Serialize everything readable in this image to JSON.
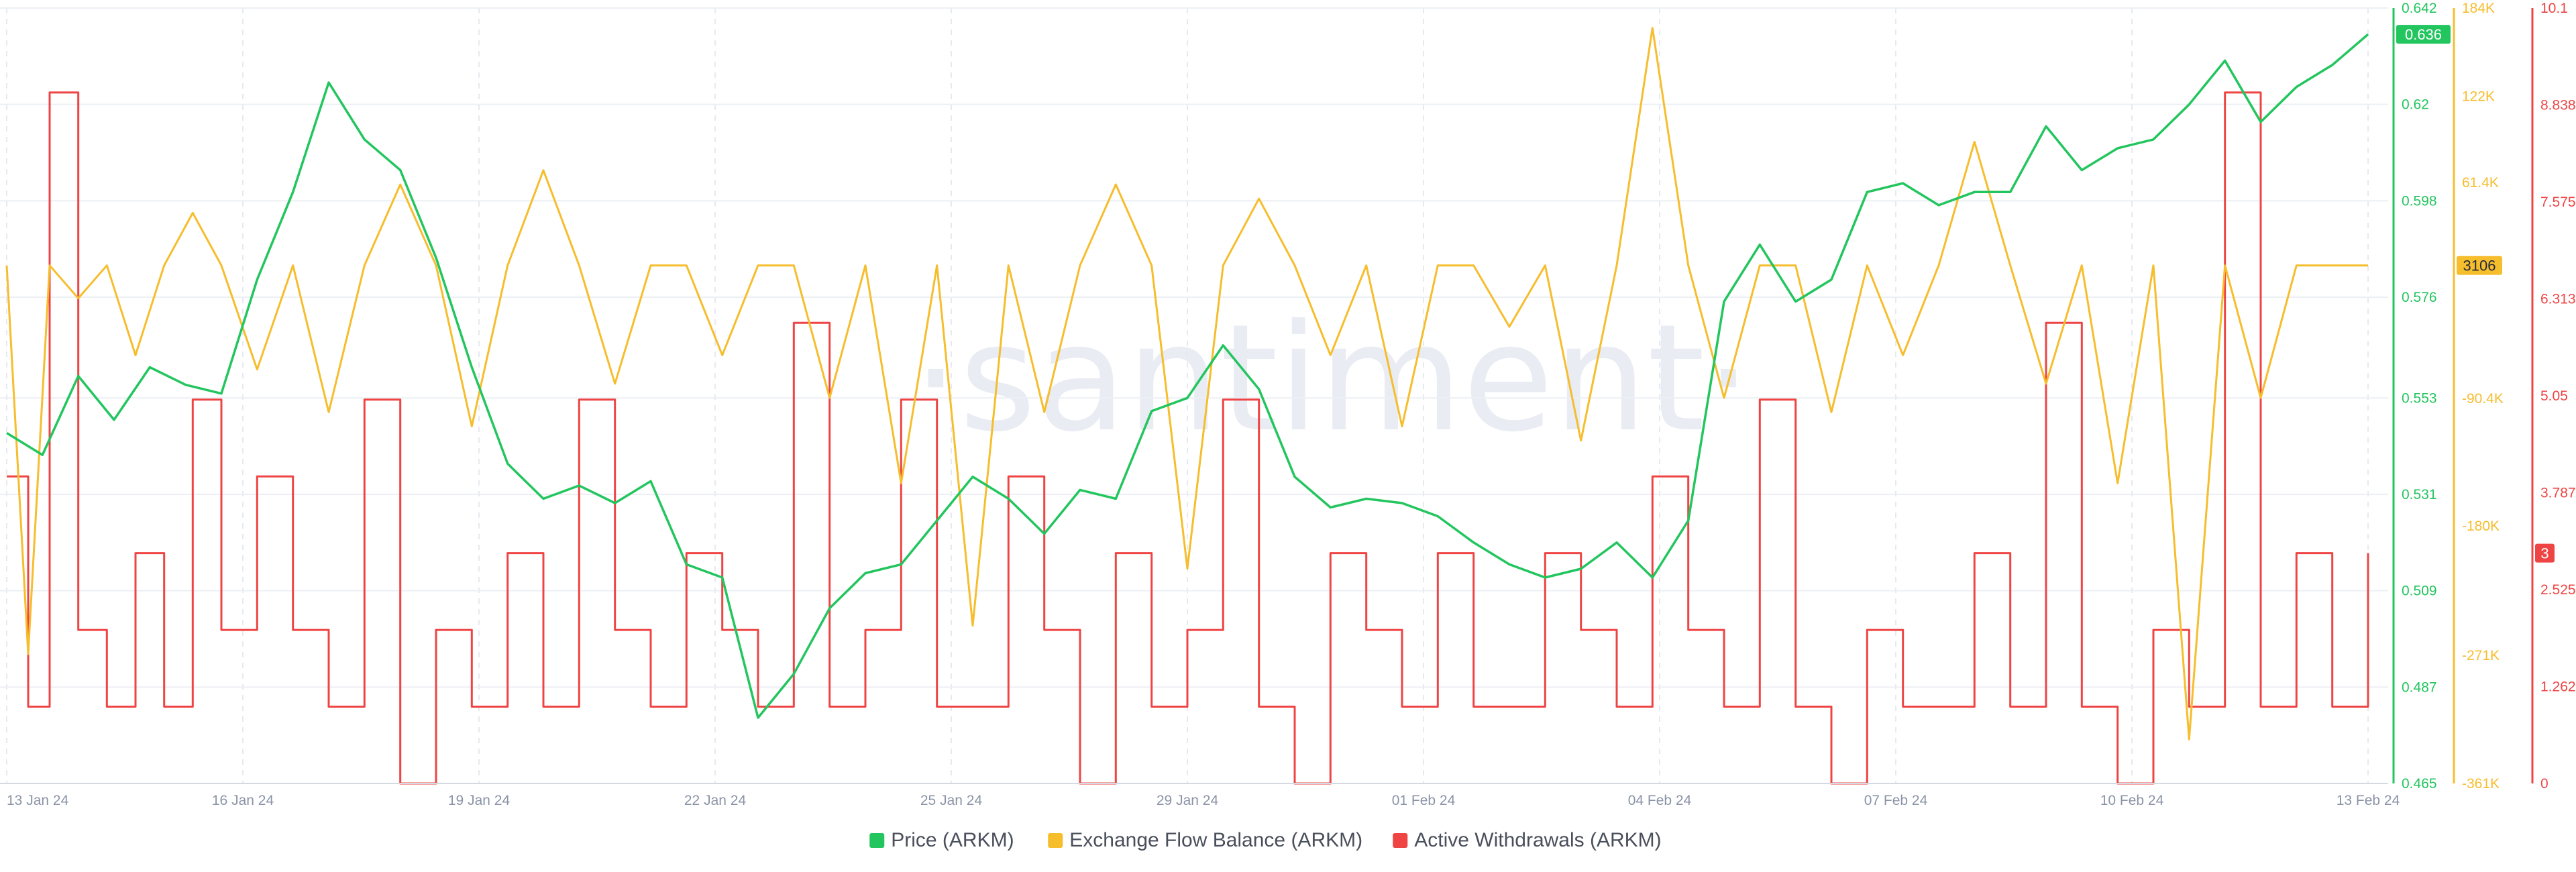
{
  "watermark": "·santiment·",
  "chart_data": {
    "type": "line",
    "grid": true,
    "legend_placement": "bottom-center",
    "x_ticks": [
      "13 Jan 24",
      "16 Jan 24",
      "19 Jan 24",
      "22 Jan 24",
      "25 Jan 24",
      "29 Jan 24",
      "01 Feb 24",
      "04 Feb 24",
      "07 Feb 24",
      "10 Feb 24",
      "13 Feb 24"
    ],
    "y_axes": [
      {
        "id": "price",
        "color": "#22c55e",
        "range": [
          0.465,
          0.642
        ],
        "ticks": [
          "0.642",
          "0.62",
          "0.598",
          "0.576",
          "0.553",
          "0.531",
          "0.509",
          "0.487",
          "0.465"
        ],
        "current_label": "0.636"
      },
      {
        "id": "flow",
        "color": "#f6bd2d",
        "range": [
          -361000,
          184000
        ],
        "ticks": [
          "184K",
          "122K",
          "61.4K",
          "3106",
          "-90.4K",
          "-180K",
          "-271K",
          "-361K"
        ],
        "current_label": "3106"
      },
      {
        "id": "withdrawals",
        "color": "#ef4444",
        "range": [
          0,
          10.1
        ],
        "ticks": [
          "10.1",
          "8.838",
          "7.575",
          "6.313",
          "5.05",
          "3.787",
          "2.525",
          "1.262",
          "0"
        ],
        "current_label": "3"
      }
    ],
    "series": [
      {
        "name": "Price (ARKM)",
        "axis": "price",
        "color": "#22c55e",
        "x": [
          0,
          0.5,
          1,
          1.5,
          2,
          2.5,
          3,
          3.5,
          4,
          4.5,
          5,
          5.5,
          6,
          6.5,
          7,
          7.5,
          8,
          8.5,
          9,
          9.5,
          10,
          10.5,
          11,
          11.5,
          12,
          12.5,
          13,
          13.5,
          14,
          14.5,
          15,
          15.5,
          16,
          16.5,
          17,
          17.5,
          18,
          18.5,
          19,
          19.5,
          20,
          20.5,
          21,
          21.5,
          22,
          22.5,
          23,
          23.5,
          24,
          24.5,
          25,
          25.5,
          26,
          26.5,
          27,
          27.5,
          28,
          28.5,
          29,
          29.5,
          30,
          30.5,
          31,
          31.5,
          32,
          32.5,
          33
        ],
        "values": [
          0.545,
          0.54,
          0.558,
          0.548,
          0.56,
          0.556,
          0.554,
          0.58,
          0.6,
          0.625,
          0.612,
          0.605,
          0.585,
          0.56,
          0.538,
          0.53,
          0.533,
          0.529,
          0.534,
          0.515,
          0.512,
          0.48,
          0.49,
          0.505,
          0.513,
          0.515,
          0.525,
          0.535,
          0.53,
          0.522,
          0.532,
          0.53,
          0.55,
          0.553,
          0.565,
          0.555,
          0.535,
          0.528,
          0.53,
          0.529,
          0.526,
          0.52,
          0.515,
          0.512,
          0.514,
          0.52,
          0.512,
          0.525,
          0.575,
          0.588,
          0.575,
          0.58,
          0.6,
          0.602,
          0.597,
          0.6,
          0.6,
          0.615,
          0.605,
          0.61,
          0.612,
          0.62,
          0.63,
          0.616,
          0.624,
          0.629,
          0.636
        ]
      },
      {
        "name": "Exchange Flow Balance (ARKM)",
        "axis": "flow",
        "color": "#f6bd2d",
        "x": [
          0,
          0.3,
          0.6,
          1,
          1.4,
          1.8,
          2.2,
          2.6,
          3,
          3.5,
          4,
          4.5,
          5,
          5.5,
          6,
          6.5,
          7,
          7.5,
          8,
          8.5,
          9,
          9.5,
          10,
          10.5,
          11,
          11.5,
          12,
          12.5,
          13,
          13.5,
          14,
          14.5,
          15,
          15.5,
          16,
          16.5,
          17,
          17.5,
          18,
          18.5,
          19,
          19.5,
          20,
          20.5,
          21,
          21.5,
          22,
          22.5,
          23,
          23.5,
          24,
          24.5,
          25,
          25.5,
          26,
          26.5,
          27,
          27.5,
          28,
          28.5,
          29,
          29.5,
          30,
          30.5,
          31,
          31.5,
          32,
          32.5,
          33
        ],
        "values": [
          3106,
          -270000,
          3106,
          -20000,
          3106,
          -60000,
          3106,
          40000,
          3106,
          -70000,
          3106,
          -100000,
          3106,
          60000,
          3106,
          -110000,
          3106,
          70000,
          3106,
          -80000,
          3106,
          3106,
          -60000,
          3106,
          3106,
          -90000,
          3106,
          -150000,
          3106,
          -250000,
          3106,
          -100000,
          3106,
          60000,
          3106,
          -210000,
          3106,
          50000,
          3106,
          -60000,
          3106,
          -110000,
          3106,
          3106,
          -40000,
          3106,
          -120000,
          3106,
          170000,
          3106,
          -90000,
          3106,
          3106,
          -100000,
          3106,
          -60000,
          3106,
          90000,
          3106,
          -80000,
          3106,
          -150000,
          3106,
          -330000,
          3106,
          -90000,
          3106,
          3106,
          3106
        ]
      },
      {
        "name": "Active Withdrawals (ARKM)",
        "axis": "withdrawals",
        "color": "#ef4444",
        "x": [
          0,
          0.3,
          0.6,
          1,
          1.4,
          1.8,
          2.2,
          2.6,
          3,
          3.5,
          4,
          4.5,
          5,
          5.5,
          6,
          6.5,
          7,
          7.5,
          8,
          8.5,
          9,
          9.5,
          10,
          10.5,
          11,
          11.5,
          12,
          12.5,
          13,
          13.5,
          14,
          14.5,
          15,
          15.5,
          16,
          16.5,
          17,
          17.5,
          18,
          18.5,
          19,
          19.5,
          20,
          20.5,
          21,
          21.5,
          22,
          22.5,
          23,
          23.5,
          24,
          24.5,
          25,
          25.5,
          26,
          26.5,
          27,
          27.5,
          28,
          28.5,
          29,
          29.5,
          30,
          30.5,
          31,
          31.5,
          32,
          32.5,
          33
        ],
        "values": [
          4,
          1,
          9,
          2,
          1,
          3,
          1,
          5,
          2,
          4,
          2,
          1,
          5,
          0,
          2,
          1,
          3,
          1,
          5,
          2,
          1,
          3,
          2,
          1,
          6,
          1,
          2,
          5,
          1,
          1,
          4,
          2,
          0,
          3,
          1,
          2,
          5,
          1,
          0,
          3,
          2,
          1,
          3,
          1,
          1,
          3,
          2,
          1,
          4,
          2,
          1,
          5,
          1,
          0,
          2,
          1,
          1,
          3,
          1,
          6,
          1,
          0,
          2,
          1,
          9,
          1,
          3,
          1,
          3
        ]
      }
    ]
  },
  "legend": [
    {
      "label": "Price (ARKM)",
      "color": "#22c55e"
    },
    {
      "label": "Exchange Flow Balance (ARKM)",
      "color": "#f6bd2d"
    },
    {
      "label": "Active Withdrawals (ARKM)",
      "color": "#ef4444"
    }
  ]
}
